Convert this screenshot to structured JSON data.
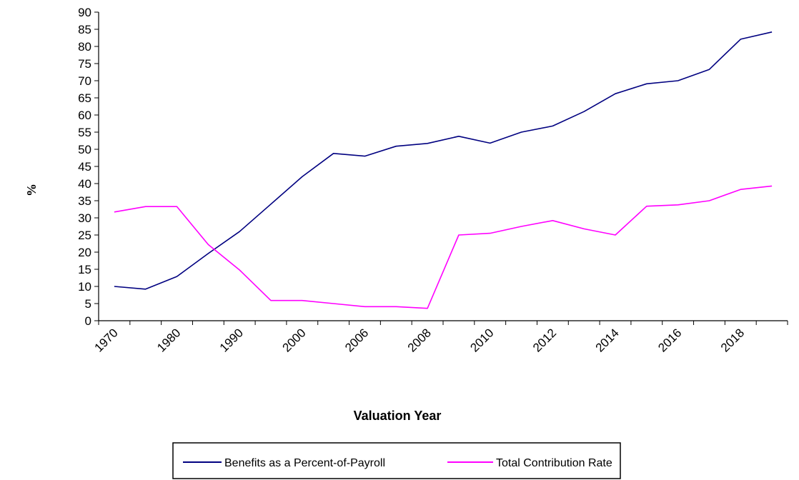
{
  "chart_data": {
    "type": "line",
    "x": [
      "1970",
      "",
      "1980",
      "",
      "1990",
      "",
      "2000",
      "",
      "2006",
      "",
      "2008",
      "",
      "2010",
      "",
      "2012",
      "",
      "2014",
      "",
      "2016",
      "",
      "2018",
      ""
    ],
    "ylabel": "%",
    "xlabel": "Valuation Year",
    "ylim": [
      0,
      90
    ],
    "ytick_step": 5,
    "grid": false,
    "legend_position": "bottom",
    "series": [
      {
        "name": "Benefits as a Percent-of-Payroll",
        "color": "#000080",
        "values": [
          10.0,
          9.2,
          12.9,
          19.6,
          26.0,
          34.0,
          42.0,
          48.8,
          48.0,
          50.9,
          51.7,
          53.8,
          51.8,
          55.0,
          56.8,
          61.0,
          66.2,
          69.1,
          70.0,
          73.3,
          82.1,
          84.2
        ]
      },
      {
        "name": "Total Contribution Rate",
        "color": "#FF00FF",
        "values": [
          31.7,
          33.3,
          33.3,
          22.2,
          14.8,
          5.9,
          5.9,
          5.0,
          4.1,
          4.1,
          3.6,
          25.0,
          25.5,
          27.5,
          29.2,
          26.8,
          25.0,
          33.4,
          33.8,
          35.0,
          38.3,
          39.3
        ]
      }
    ]
  }
}
